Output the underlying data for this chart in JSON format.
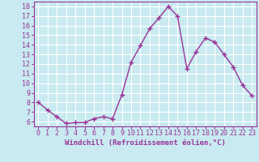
{
  "x": [
    0,
    1,
    2,
    3,
    4,
    5,
    6,
    7,
    8,
    9,
    10,
    11,
    12,
    13,
    14,
    15,
    16,
    17,
    18,
    19,
    20,
    21,
    22,
    23
  ],
  "y": [
    8.0,
    7.2,
    6.5,
    5.8,
    5.9,
    5.9,
    6.3,
    6.5,
    6.3,
    8.8,
    12.2,
    13.9,
    15.7,
    16.8,
    18.0,
    17.0,
    11.5,
    13.3,
    14.7,
    14.3,
    13.0,
    11.7,
    9.8,
    8.7
  ],
  "line_color": "#993399",
  "marker": "+",
  "marker_size": 4,
  "marker_lw": 1.0,
  "xlabel": "Windchill (Refroidissement éolien,°C)",
  "xlabel_fontsize": 6.5,
  "yticks": [
    6,
    7,
    8,
    9,
    10,
    11,
    12,
    13,
    14,
    15,
    16,
    17,
    18
  ],
  "xlim": [
    -0.5,
    23.5
  ],
  "ylim": [
    5.5,
    18.5
  ],
  "bg_color": "#c8eaf0",
  "grid_color": "#ffffff",
  "tick_fontsize": 6.0,
  "line_width": 1.0
}
